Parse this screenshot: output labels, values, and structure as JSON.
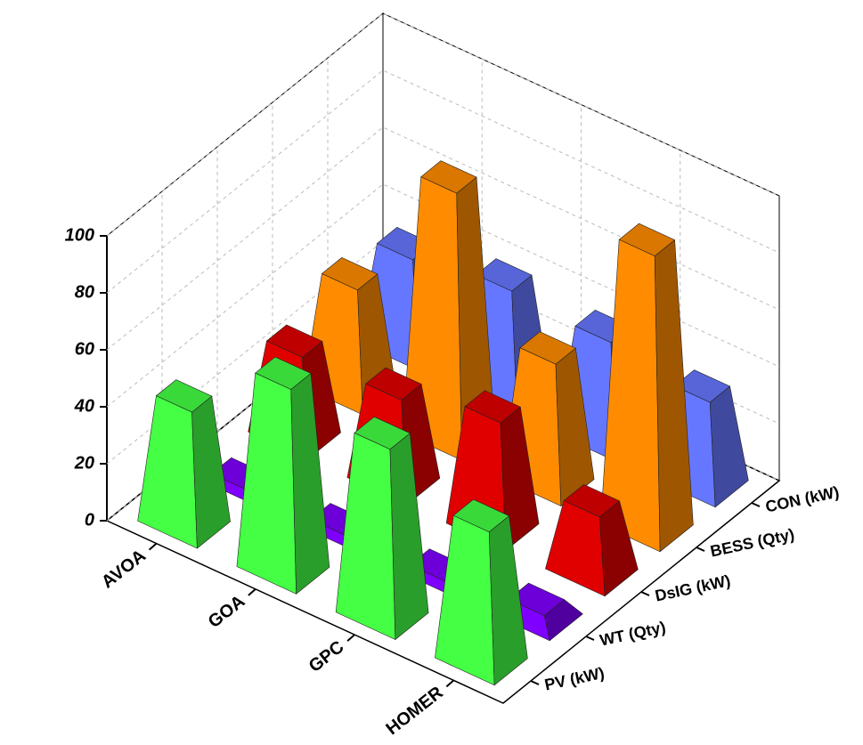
{
  "chart_data": {
    "type": "bar3d",
    "categories": [
      "AVOA",
      "GOA",
      "GPC",
      "HOMER"
    ],
    "series": [
      {
        "name": "PV (kW)",
        "color": "#44ff44",
        "values": [
          44,
          68,
          63,
          50
        ]
      },
      {
        "name": "WT (Qty)",
        "color": "#8000ff",
        "values": [
          1,
          1,
          1,
          5
        ]
      },
      {
        "name": "DsIG (kW)",
        "color": "#e00000",
        "values": [
          32,
          33,
          41,
          24
        ]
      },
      {
        "name": "BESS (Qty)",
        "color": "#ff8c00",
        "values": [
          40,
          90,
          46,
          100
        ]
      },
      {
        "name": "CON (kW)",
        "color": "#6677ff",
        "values": [
          35,
          40,
          38,
          33
        ]
      }
    ],
    "ylim": [
      0,
      100
    ],
    "yticks": [
      0,
      20,
      40,
      60,
      80,
      100
    ],
    "grid": true
  }
}
